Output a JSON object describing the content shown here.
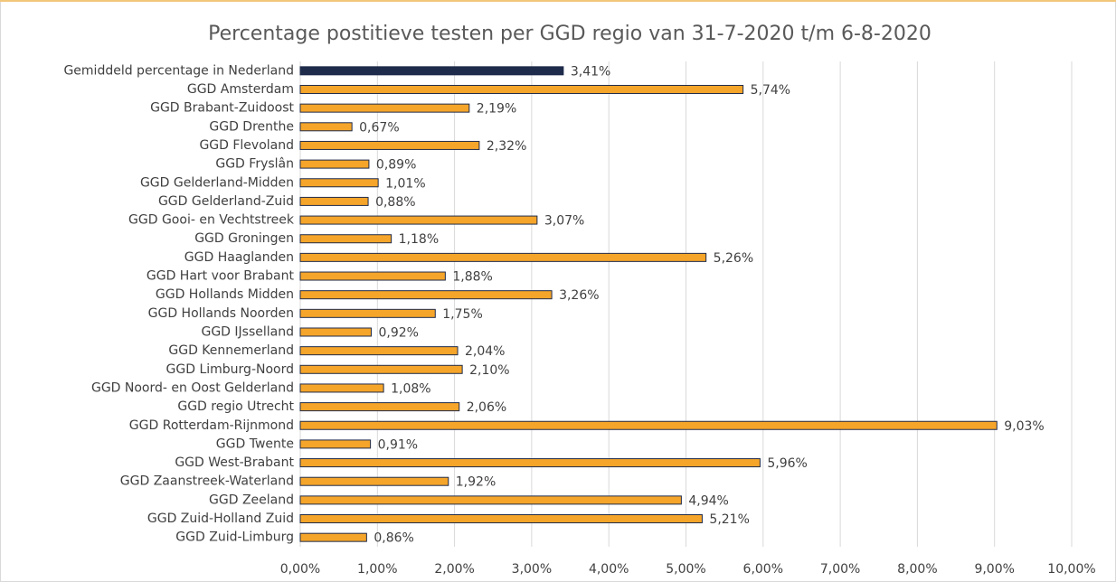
{
  "chart_data": {
    "type": "bar",
    "orientation": "horizontal",
    "title": "Percentage postitieve testen per GGD regio van 31-7-2020 t/m 6-8-2020",
    "categories": [
      "Gemiddeld percentage in Nederland",
      "GGD Amsterdam",
      "GGD Brabant-Zuidoost",
      "GGD Drenthe",
      "GGD Flevoland",
      "GGD Fryslân",
      "GGD Gelderland-Midden",
      "GGD Gelderland-Zuid",
      "GGD Gooi- en Vechtstreek",
      "GGD Groningen",
      "GGD Haaglanden",
      "GGD Hart voor Brabant",
      "GGD Hollands Midden",
      "GGD Hollands Noorden",
      "GGD IJsselland",
      "GGD Kennemerland",
      "GGD Limburg-Noord",
      "GGD Noord- en Oost Gelderland",
      "GGD regio Utrecht",
      "GGD Rotterdam-Rijnmond",
      "GGD Twente",
      "GGD West-Brabant",
      "GGD Zaanstreek-Waterland",
      "GGD Zeeland",
      "GGD Zuid-Holland Zuid",
      "GGD Zuid-Limburg"
    ],
    "values": [
      3.41,
      5.74,
      2.19,
      0.67,
      2.32,
      0.89,
      1.01,
      0.88,
      3.07,
      1.18,
      5.26,
      1.88,
      3.26,
      1.75,
      0.92,
      2.04,
      2.1,
      1.08,
      2.06,
      9.03,
      0.91,
      5.96,
      1.92,
      4.94,
      5.21,
      0.86
    ],
    "value_labels": [
      "3,41%",
      "5,74%",
      "2,19%",
      "0,67%",
      "2,32%",
      "0,89%",
      "1,01%",
      "0,88%",
      "3,07%",
      "1,18%",
      "5,26%",
      "1,88%",
      "3,26%",
      "1,75%",
      "0,92%",
      "2,04%",
      "2,10%",
      "1,08%",
      "2,06%",
      "9,03%",
      "0,91%",
      "5,96%",
      "1,92%",
      "4,94%",
      "5,21%",
      "0,86%"
    ],
    "colors": [
      "#1f2b4a",
      "#f5a52a",
      "#f5a52a",
      "#f5a52a",
      "#f5a52a",
      "#f5a52a",
      "#f5a52a",
      "#f5a52a",
      "#f5a52a",
      "#f5a52a",
      "#f5a52a",
      "#f5a52a",
      "#f5a52a",
      "#f5a52a",
      "#f5a52a",
      "#f5a52a",
      "#f5a52a",
      "#f5a52a",
      "#f5a52a",
      "#f5a52a",
      "#f5a52a",
      "#f5a52a",
      "#f5a52a",
      "#f5a52a",
      "#f5a52a",
      "#f5a52a"
    ],
    "xlim": [
      0,
      10
    ],
    "xticks": [
      {
        "value": 0,
        "label": "0,00%"
      },
      {
        "value": 1,
        "label": "1,00%"
      },
      {
        "value": 2,
        "label": "2,00%"
      },
      {
        "value": 3,
        "label": "3,00%"
      },
      {
        "value": 4,
        "label": "4,00%"
      },
      {
        "value": 5,
        "label": "5,00%"
      },
      {
        "value": 6,
        "label": "6,00%"
      },
      {
        "value": 7,
        "label": "7,00%"
      },
      {
        "value": 8,
        "label": "8,00%"
      },
      {
        "value": 9,
        "label": "9,00%"
      },
      {
        "value": 10,
        "label": "10,00%"
      }
    ],
    "grid": true
  }
}
